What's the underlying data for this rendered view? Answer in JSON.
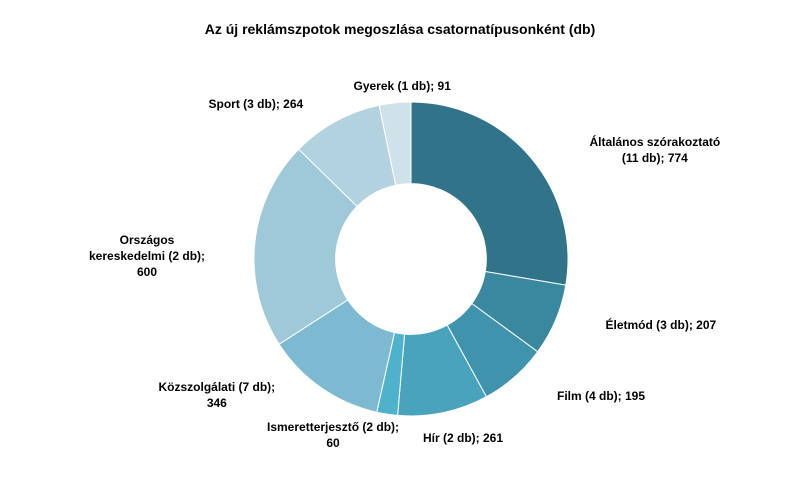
{
  "chart_data": {
    "type": "pie",
    "title": "Az új reklámszpotok megoszlása csatornatípusonként (db)",
    "inner_radius_ratio": 0.48,
    "slices": [
      {
        "category": "Általános szórakoztató",
        "count": "(11 db)",
        "value": 774,
        "color": "#31748a",
        "label_lines": [
          "Általános szórakoztató",
          "(11 db); 774"
        ]
      },
      {
        "category": "Életmód",
        "count": "(3 db)",
        "value": 207,
        "color": "#3a88a0",
        "label_lines": [
          "Életmód (3 db); 207"
        ]
      },
      {
        "category": "Film",
        "count": "(4 db)",
        "value": 195,
        "color": "#3f93ad",
        "label_lines": [
          "Film (4 db); 195"
        ]
      },
      {
        "category": "Hír",
        "count": "(2 db)",
        "value": 261,
        "color": "#49a3bd",
        "label_lines": [
          "Hír (2 db); 261"
        ]
      },
      {
        "category": "Ismeretterjesztő",
        "count": "(2 db)",
        "value": 60,
        "color": "#4fb2cc",
        "label_lines": [
          "Ismeretterjesztő (2 db);",
          "60"
        ]
      },
      {
        "category": "Közszolgálati",
        "count": "(7 db)",
        "value": 346,
        "color": "#7db9d0",
        "label_lines": [
          "Közszolgálati (7 db);",
          "346"
        ]
      },
      {
        "category": "Országos kereskedelmi",
        "count": "(2 db)",
        "value": 600,
        "color": "#9fc8d8",
        "label_lines": [
          "Országos",
          "kereskedelmi (2 db);",
          "600"
        ]
      },
      {
        "category": "Sport",
        "count": "(3 db)",
        "value": 264,
        "color": "#b2d2df",
        "label_lines": [
          "Sport (3 db); 264"
        ]
      },
      {
        "category": "Gyerek",
        "count": "(1 db)",
        "value": 91,
        "color": "#cfe1e9",
        "label_lines": [
          "Gyerek (1 db); 91"
        ]
      }
    ]
  }
}
